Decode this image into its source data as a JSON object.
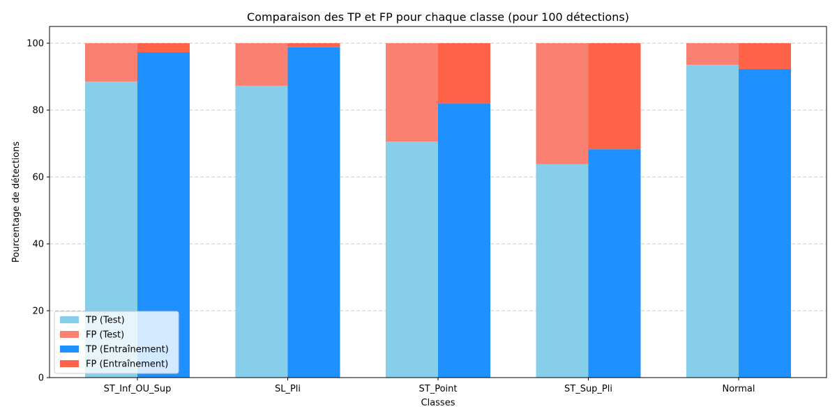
{
  "chart_data": {
    "type": "bar",
    "stacked": true,
    "grouped": true,
    "title": "Comparaison des TP et FP pour chaque classe (pour 100 détections)",
    "xlabel": "Classes",
    "ylabel": "Pourcentage de détections",
    "ylim": [
      0,
      105
    ],
    "yticks": [
      0,
      20,
      40,
      60,
      80,
      100
    ],
    "grid": "y-dashed",
    "legend_position": "lower-left",
    "categories": [
      "ST_Inf_OU_Sup",
      "SL_Pli",
      "ST_Point",
      "ST_Sup_Pli",
      "Normal"
    ],
    "series": [
      {
        "name": "TP (Test)",
        "group": "Test",
        "stack": "bottom",
        "color": "#87CEEB",
        "values": [
          88.5,
          87.3,
          70.6,
          63.8,
          93.5
        ]
      },
      {
        "name": "FP (Test)",
        "group": "Test",
        "stack": "top",
        "color": "#FA8072",
        "values": [
          11.5,
          12.7,
          29.4,
          36.2,
          6.5
        ]
      },
      {
        "name": "TP (Entraînement)",
        "group": "Entraînement",
        "stack": "bottom",
        "color": "#1E90FF",
        "values": [
          97.3,
          98.8,
          82.0,
          68.3,
          92.3
        ]
      },
      {
        "name": "FP (Entraînement)",
        "group": "Entraînement",
        "stack": "top",
        "color": "#FF6347",
        "values": [
          2.7,
          1.2,
          18.0,
          31.7,
          7.7
        ]
      }
    ]
  }
}
